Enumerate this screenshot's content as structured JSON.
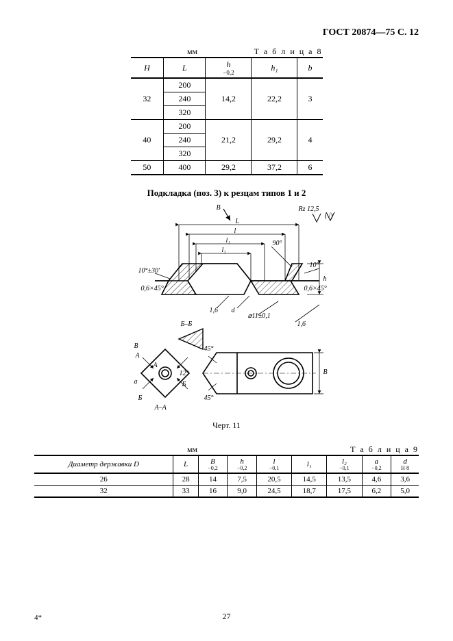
{
  "header": {
    "doc_code": "ГОСТ 20874—75 С. 12"
  },
  "table8": {
    "caption_unit": "мм",
    "caption_label": "Т а б л и ц а  8",
    "columns": [
      {
        "label": "H",
        "tol": ""
      },
      {
        "label": "L",
        "tol": ""
      },
      {
        "label": "h",
        "tol": "−0,2"
      },
      {
        "label": "h₁",
        "tol": ""
      },
      {
        "label": "b",
        "tol": ""
      }
    ],
    "groups": [
      {
        "H": "32",
        "L": [
          "200",
          "240",
          "320"
        ],
        "h": "14,2",
        "h1": "22,2",
        "b": "3"
      },
      {
        "H": "40",
        "L": [
          "200",
          "240",
          "320"
        ],
        "h": "21,2",
        "h1": "29,2",
        "b": "4"
      },
      {
        "H": "50",
        "L": [
          "400"
        ],
        "h": "29,2",
        "h1": "37,2",
        "b": "6"
      }
    ]
  },
  "section_title": "Подкладка (поз. 3) к резцам типов 1 и 2",
  "drawing": {
    "labels": {
      "B_arrow": "B",
      "Rz": "Rz 12,5",
      "surf": "(√)",
      "L_top": "L",
      "l": "l",
      "l1": "l₁",
      "l2": "l₂",
      "ang90": "90°",
      "ang10_30": "10°±30'",
      "chamf_l": "0,6×45°",
      "chamf_r": "0,6×45°",
      "ang10": "10°",
      "h": "h",
      "fillet16_a": "1,6",
      "fillet16_b": "1,6",
      "d_dim": "d",
      "phi11": "⌀11±0,1",
      "BB": "Б–Б",
      "A_sec1": "A",
      "A_sec2": "A",
      "Bsec1": "Б",
      "Bsec2": "Б",
      "AA": "A–A",
      "B_small": "B",
      "a_small": "a",
      "ang12": "12°",
      "ang45a": "45°",
      "ang45b": "45°",
      "B_dim": "B"
    },
    "caption": "Черт. 11",
    "styling": {
      "stroke": "#000000",
      "stroke_width_main": 1.6,
      "stroke_width_thin": 0.8,
      "hatch_spacing": 4,
      "background": "#ffffff",
      "font_size_labels": 10
    }
  },
  "table9": {
    "caption_unit": "мм",
    "caption_label": "Т а б л и ц а  9",
    "columns": [
      {
        "label": "Диаметр державки D",
        "tol": ""
      },
      {
        "label": "L",
        "tol": ""
      },
      {
        "label": "B",
        "tol": "−0,2"
      },
      {
        "label": "h",
        "tol": "−0,2"
      },
      {
        "label": "l",
        "tol": "−0,1"
      },
      {
        "label": "l₁",
        "tol": ""
      },
      {
        "label": "l₂",
        "tol": "−0,1"
      },
      {
        "label": "a",
        "tol": "−0,2"
      },
      {
        "label": "d",
        "tol": "H 8"
      }
    ],
    "rows": [
      [
        "26",
        "28",
        "14",
        "7,5",
        "20,5",
        "14,5",
        "13,5",
        "4,6",
        "3,6"
      ],
      [
        "32",
        "33",
        "16",
        "9,0",
        "24,5",
        "18,7",
        "17,5",
        "6,2",
        "5,0"
      ]
    ]
  },
  "footer": {
    "page_num": "27",
    "sig": "4*"
  }
}
